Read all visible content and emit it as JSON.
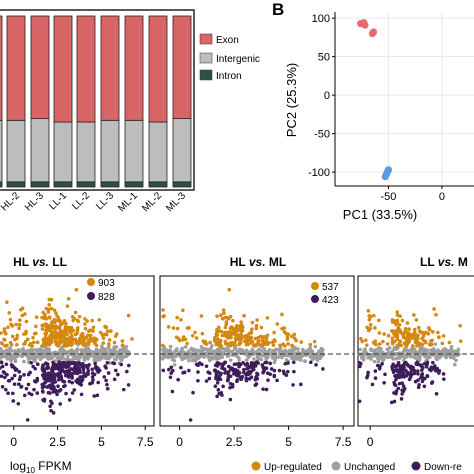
{
  "panel_labels": {
    "b": "B"
  },
  "colors": {
    "exon": "#D96666",
    "intergenic": "#BDBDBD",
    "intron": "#2F4F4A",
    "up": "#D4880F",
    "down": "#3F1D5B",
    "unchanged": "#9E9E9E",
    "pca_red": "#E8696B",
    "pca_blue": "#5B9BE0"
  },
  "chart_data": [
    {
      "type": "bar",
      "stacked": true,
      "categories": [
        "HL-2",
        "HL-3",
        "LL-1",
        "LL-2",
        "LL-3",
        "ML-1",
        "ML-2",
        "ML-3"
      ],
      "series": [
        {
          "name": "Intron",
          "values": [
            0.03,
            0.03,
            0.03,
            0.03,
            0.03,
            0.03,
            0.03,
            0.03
          ]
        },
        {
          "name": "Intergenic",
          "values": [
            0.36,
            0.37,
            0.35,
            0.35,
            0.36,
            0.36,
            0.35,
            0.37
          ]
        },
        {
          "name": "Exon",
          "values": [
            0.61,
            0.6,
            0.62,
            0.62,
            0.61,
            0.61,
            0.62,
            0.6
          ]
        }
      ],
      "legend": [
        "Exon",
        "Intergenic",
        "Intron"
      ],
      "legend_position": "right",
      "ylim": [
        0,
        1
      ]
    },
    {
      "type": "scatter",
      "panel": "B",
      "xlabel": "PC1 (33.5%)",
      "ylabel": "PC2 (25.3%)",
      "xticks": [
        "-50",
        "0"
      ],
      "yticks": [
        "100",
        "50",
        "0",
        "-50",
        "-100"
      ],
      "xlim": [
        -100,
        30
      ],
      "ylim": [
        -118,
        108
      ],
      "grid": true,
      "series": [
        {
          "color": "red",
          "points": [
            [
              -76,
              93
            ],
            [
              -73,
              94
            ],
            [
              -72,
              91
            ],
            [
              -65,
              80
            ],
            [
              -64,
              82
            ]
          ]
        },
        {
          "color": "blue",
          "points": [
            [
              -50,
              -97
            ],
            [
              -51,
              -100
            ],
            [
              -52,
              -103
            ],
            [
              -53,
              -106
            ]
          ]
        }
      ]
    },
    {
      "type": "scatter",
      "title_bold": "HL",
      "title_italic": "vs.",
      "title_end": "LL",
      "xticks": [
        "0",
        "2.5",
        "5",
        "7.5"
      ],
      "xlim": [
        -0.9,
        8
      ],
      "counts": {
        "up": "903",
        "down": "828"
      },
      "series": [
        {
          "name": "Up-regulated",
          "count": 903
        },
        {
          "name": "Unchanged"
        },
        {
          "name": "Down-regulated",
          "count": 828
        }
      ]
    },
    {
      "type": "scatter",
      "title_bold": "HL",
      "title_italic": "vs.",
      "title_end": "ML",
      "xticks": [
        "0",
        "2.5",
        "5",
        "7.5"
      ],
      "xlim": [
        -0.9,
        8
      ],
      "counts": {
        "up": "537",
        "down": "423"
      },
      "series": [
        {
          "name": "Up-regulated",
          "count": 537
        },
        {
          "name": "Unchanged"
        },
        {
          "name": "Down-regulated",
          "count": 423
        }
      ]
    },
    {
      "type": "scatter",
      "title_bold": "LL",
      "title_italic": "vs.",
      "title_end": "M",
      "xticks": [
        "0"
      ],
      "xlim": [
        -0.9,
        8
      ]
    }
  ],
  "axis_c": {
    "xlabel_base": "log",
    "xlabel_sub": "10",
    "xlabel_rest": " FPKM"
  },
  "legend_bottom": [
    "Up-regulated",
    "Unchanged",
    "Down-re"
  ]
}
